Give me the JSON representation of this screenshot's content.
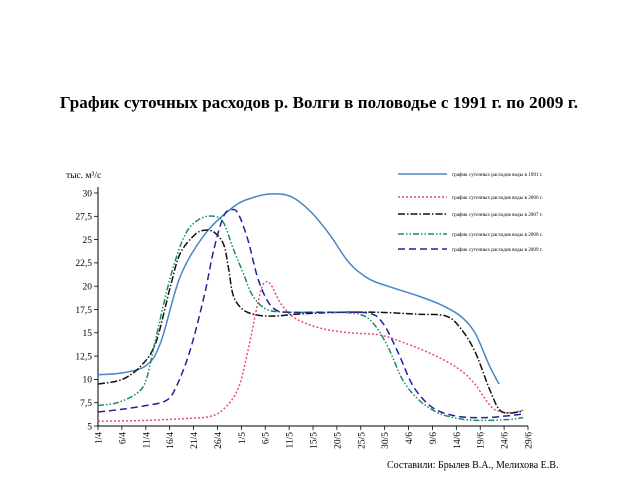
{
  "page": {
    "title": "График суточных расходов р. Волги в половодье с 1991 г. по 2009 г.",
    "credits": "Составили: Брылев В.А., Мелихова Е.В."
  },
  "chart_data": {
    "type": "line",
    "title": "График суточных расходов р. Волги в половодье с 1991 г. по 2009 г.",
    "ylabel": "тыс. м³/с",
    "xlabel": "",
    "ylim": [
      5,
      30
    ],
    "xlim": [
      0,
      89
    ],
    "yticks": [
      "5",
      "7,5",
      "10",
      "12,5",
      "15",
      "17,5",
      "20",
      "22,5",
      "25",
      "27,5",
      "30"
    ],
    "categories": [
      "1/4",
      "6/4",
      "11/4",
      "16/4",
      "21/4",
      "26/4",
      "1/5",
      "6/5",
      "11/5",
      "15/5",
      "20/5",
      "25/5",
      "30/5",
      "4/6",
      "9/6",
      "14/6",
      "19/6",
      "24/6",
      "29/6"
    ],
    "legend_position": "top-right",
    "grid": false,
    "series": [
      {
        "name": "график суточных расходов воды в 1991 г.",
        "color": "#4a86c2",
        "dash": "solid",
        "points": [
          [
            0,
            10.5
          ],
          [
            5,
            10.7
          ],
          [
            10,
            11.5
          ],
          [
            13,
            14
          ],
          [
            17,
            21
          ],
          [
            22,
            25.5
          ],
          [
            28,
            28.5
          ],
          [
            32,
            29.5
          ],
          [
            36,
            29.9
          ],
          [
            40,
            29.6
          ],
          [
            44,
            28
          ],
          [
            48,
            25.5
          ],
          [
            52,
            22.5
          ],
          [
            56,
            20.8
          ],
          [
            60,
            20
          ],
          [
            66,
            19
          ],
          [
            71,
            18
          ],
          [
            75,
            16.8
          ],
          [
            78,
            15
          ],
          [
            81,
            11.5
          ],
          [
            83,
            9.5
          ]
        ]
      },
      {
        "name": "график суточных расходов воды в 2006 г.",
        "color": "#e84c78",
        "dash": "2,2",
        "points": [
          [
            0,
            5.5
          ],
          [
            10,
            5.6
          ],
          [
            18,
            5.8
          ],
          [
            23,
            6
          ],
          [
            26,
            6.8
          ],
          [
            29,
            9
          ],
          [
            31,
            13
          ],
          [
            33,
            18
          ],
          [
            34,
            20
          ],
          [
            35,
            20.5
          ],
          [
            36,
            20
          ],
          [
            38,
            18
          ],
          [
            41,
            16.5
          ],
          [
            46,
            15.5
          ],
          [
            52,
            15
          ],
          [
            58,
            14.8
          ],
          [
            63,
            14
          ],
          [
            70,
            12.5
          ],
          [
            75,
            11
          ],
          [
            78,
            9.5
          ],
          [
            80,
            8
          ],
          [
            82,
            6.8
          ],
          [
            85,
            6.4
          ],
          [
            88,
            6.7
          ]
        ]
      },
      {
        "name": "график суточных расходов воды в 2007 г.",
        "color": "#111111",
        "dash": "7,2,1.5,2",
        "points": [
          [
            0,
            9.5
          ],
          [
            5,
            10
          ],
          [
            9,
            11.5
          ],
          [
            12,
            14
          ],
          [
            15,
            20
          ],
          [
            17,
            23.5
          ],
          [
            20,
            25.5
          ],
          [
            22,
            26
          ],
          [
            24,
            25.8
          ],
          [
            26,
            24.5
          ],
          [
            27,
            22
          ],
          [
            28,
            19
          ],
          [
            30,
            17.5
          ],
          [
            33,
            16.9
          ],
          [
            37,
            16.8
          ],
          [
            41,
            17
          ],
          [
            50,
            17.2
          ],
          [
            58,
            17.2
          ],
          [
            66,
            17
          ],
          [
            72,
            16.8
          ],
          [
            75,
            15.5
          ],
          [
            78,
            13
          ],
          [
            81,
            9
          ],
          [
            83,
            6.8
          ],
          [
            85,
            6.4
          ],
          [
            88,
            6.6
          ]
        ]
      },
      {
        "name": "график суточных расходов воды в 2008 г.",
        "color": "#1a8a62",
        "dash": "6,2,1.5,2,1.5,2",
        "points": [
          [
            0,
            7.2
          ],
          [
            4,
            7.5
          ],
          [
            8,
            8.5
          ],
          [
            10,
            10
          ],
          [
            12,
            14.5
          ],
          [
            15,
            21
          ],
          [
            18,
            25.5
          ],
          [
            21,
            27.2
          ],
          [
            24,
            27.5
          ],
          [
            26,
            26.8
          ],
          [
            28,
            24
          ],
          [
            30,
            21.5
          ],
          [
            32,
            19
          ],
          [
            35,
            17.5
          ],
          [
            40,
            17.2
          ],
          [
            48,
            17.2
          ],
          [
            54,
            17
          ],
          [
            57,
            16
          ],
          [
            60,
            13.5
          ],
          [
            63,
            10
          ],
          [
            66,
            8
          ],
          [
            69,
            6.8
          ],
          [
            72,
            6.1
          ],
          [
            76,
            5.7
          ],
          [
            80,
            5.6
          ],
          [
            85,
            5.7
          ],
          [
            88,
            5.9
          ]
        ]
      },
      {
        "name": "график суточных расходов воды в 2009 г.",
        "color": "#22229c",
        "dash": "7,4",
        "points": [
          [
            0,
            6.5
          ],
          [
            5,
            6.8
          ],
          [
            10,
            7.2
          ],
          [
            14,
            7.7
          ],
          [
            16,
            9
          ],
          [
            19,
            13
          ],
          [
            22,
            19
          ],
          [
            24,
            24
          ],
          [
            26,
            27.5
          ],
          [
            27.5,
            28.2
          ],
          [
            29,
            27.8
          ],
          [
            31,
            25
          ],
          [
            33,
            21
          ],
          [
            35,
            18.5
          ],
          [
            37,
            17.4
          ],
          [
            40,
            17.2
          ],
          [
            48,
            17.2
          ],
          [
            56,
            17.1
          ],
          [
            59,
            16
          ],
          [
            62,
            13
          ],
          [
            65,
            9.5
          ],
          [
            68,
            7.5
          ],
          [
            71,
            6.5
          ],
          [
            75,
            6
          ],
          [
            80,
            5.9
          ],
          [
            85,
            6.1
          ],
          [
            88,
            6.3
          ]
        ]
      }
    ]
  }
}
